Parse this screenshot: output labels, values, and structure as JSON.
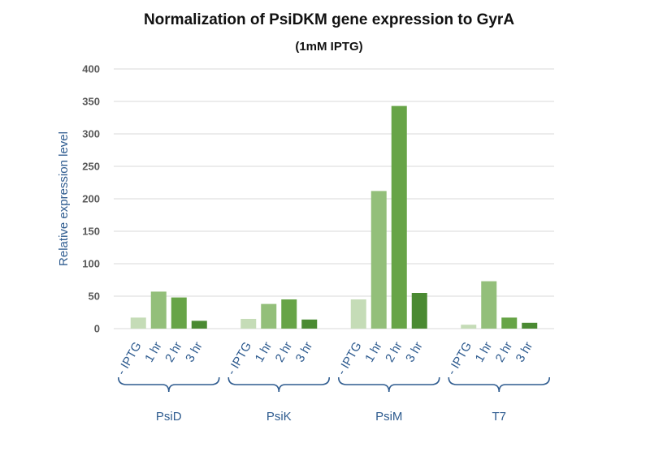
{
  "chart_data": {
    "type": "bar",
    "title": "Normalization of PsiDKM gene expression to GyrA",
    "subtitle": "(1mM IPTG)",
    "xlabel": "",
    "ylabel": "Relative expression level",
    "ylim": [
      0,
      400
    ],
    "yticks": [
      0,
      50,
      100,
      150,
      200,
      250,
      300,
      350,
      400
    ],
    "grid": true,
    "categories": [
      "PsiD",
      "PsiK",
      "PsiM",
      "T7"
    ],
    "conditions": [
      "- IPTG",
      "1 hr",
      "2 hr",
      "3 hr"
    ],
    "condition_colors": [
      "#c5dcb7",
      "#93bf7a",
      "#67a447",
      "#4a8a32"
    ],
    "series": [
      {
        "name": "- IPTG",
        "values": [
          17,
          15,
          45,
          6
        ]
      },
      {
        "name": "1 hr",
        "values": [
          57,
          38,
          212,
          73
        ]
      },
      {
        "name": "2 hr",
        "values": [
          48,
          45,
          343,
          17
        ]
      },
      {
        "name": "3 hr",
        "values": [
          12,
          14,
          55,
          9
        ]
      }
    ]
  },
  "colors": {
    "label_blue": "#2e5b8f",
    "grid": "#d9d9d9",
    "tick_text": "#595959"
  }
}
